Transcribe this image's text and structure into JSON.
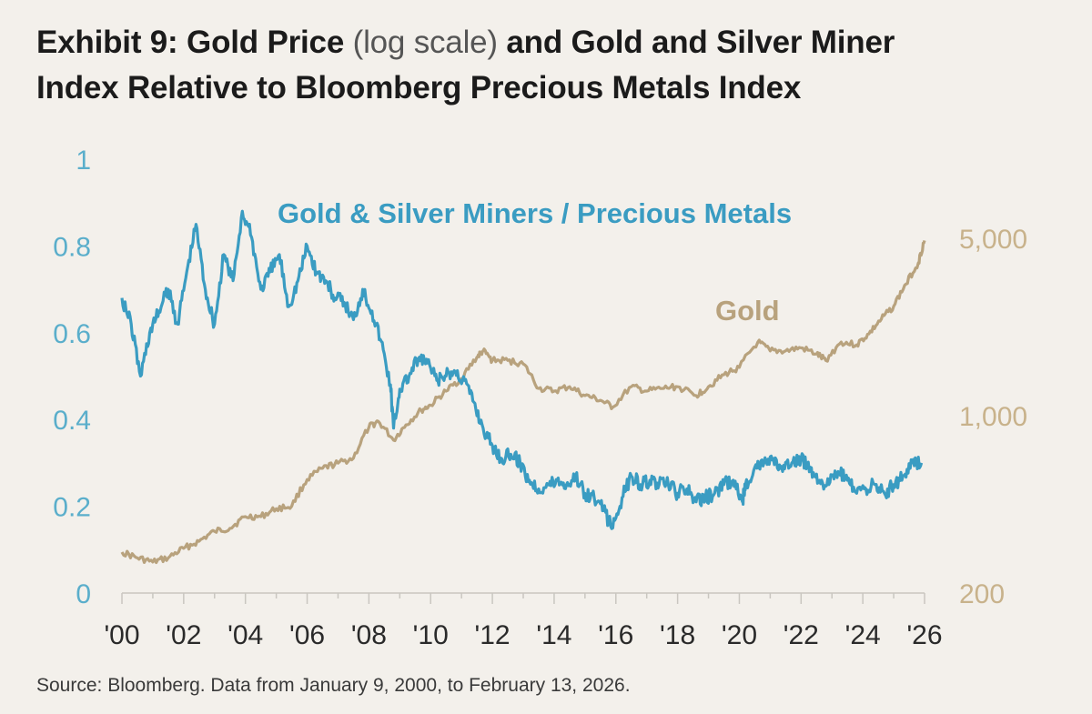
{
  "title": {
    "part1": "Exhibit 9: Gold Price ",
    "part2": "(log scale)",
    "part3": " and Gold and Silver Miner",
    "line2": "Index Relative to Bloomberg Precious Metals Index"
  },
  "source": "Source: Bloomberg. Data from January 9, 2000, to February 13, 2026.",
  "colors": {
    "miners": "#3a9cc2",
    "gold": "#b8a27d",
    "left_axis": "#5aaecb",
    "right_axis": "#c8b28b",
    "background": "#f3f0eb"
  },
  "chart_data": {
    "type": "line",
    "title": "Gold Price (log scale) and Gold and Silver Miner Index Relative to Bloomberg Precious Metals Index",
    "x_ticks": [
      "'00",
      "'02",
      "'04",
      "'06",
      "'08",
      "'10",
      "'12",
      "'14",
      "'16",
      "'18",
      "'20",
      "'22",
      "'24",
      "'26"
    ],
    "x_range": [
      2000,
      2026
    ],
    "left_axis": {
      "ticks": [
        "0",
        "0.2",
        "0.4",
        "0.6",
        "0.8",
        "1"
      ],
      "range": [
        0,
        1
      ],
      "scale": "linear"
    },
    "right_axis": {
      "ticks": [
        "200",
        "1,000",
        "5,000"
      ],
      "range": [
        200,
        5000
      ],
      "scale": "log"
    },
    "legend": "inline labels",
    "series": [
      {
        "name": "Gold & Silver Miners / Precious Metals",
        "axis": "left",
        "x": [
          2000.0,
          2000.3,
          2000.6,
          2000.9,
          2001.2,
          2001.5,
          2001.8,
          2002.1,
          2002.4,
          2002.7,
          2003.0,
          2003.3,
          2003.6,
          2003.9,
          2004.2,
          2004.5,
          2004.8,
          2005.1,
          2005.4,
          2005.7,
          2006.0,
          2006.3,
          2006.6,
          2006.9,
          2007.2,
          2007.5,
          2007.8,
          2008.1,
          2008.4,
          2008.7,
          2008.8,
          2009.0,
          2009.3,
          2009.6,
          2009.9,
          2010.2,
          2010.5,
          2010.8,
          2011.1,
          2011.4,
          2011.7,
          2012.0,
          2012.3,
          2012.6,
          2012.9,
          2013.2,
          2013.5,
          2013.8,
          2014.1,
          2014.4,
          2014.7,
          2015.0,
          2015.3,
          2015.6,
          2015.9,
          2016.2,
          2016.5,
          2016.8,
          2017.1,
          2017.4,
          2017.7,
          2018.0,
          2018.3,
          2018.6,
          2018.9,
          2019.2,
          2019.5,
          2019.8,
          2020.1,
          2020.2,
          2020.5,
          2020.8,
          2021.1,
          2021.4,
          2021.7,
          2022.0,
          2022.3,
          2022.6,
          2022.9,
          2023.2,
          2023.5,
          2023.8,
          2024.1,
          2024.4,
          2024.7,
          2025.0,
          2025.3,
          2025.6,
          2025.9
        ],
        "y": [
          0.68,
          0.62,
          0.5,
          0.6,
          0.65,
          0.7,
          0.62,
          0.74,
          0.85,
          0.7,
          0.62,
          0.78,
          0.72,
          0.88,
          0.82,
          0.7,
          0.74,
          0.78,
          0.66,
          0.72,
          0.8,
          0.74,
          0.72,
          0.68,
          0.67,
          0.63,
          0.7,
          0.65,
          0.58,
          0.48,
          0.38,
          0.47,
          0.5,
          0.54,
          0.53,
          0.49,
          0.5,
          0.51,
          0.49,
          0.44,
          0.38,
          0.34,
          0.31,
          0.32,
          0.3,
          0.26,
          0.24,
          0.25,
          0.26,
          0.25,
          0.27,
          0.23,
          0.22,
          0.19,
          0.15,
          0.22,
          0.27,
          0.25,
          0.26,
          0.25,
          0.25,
          0.23,
          0.24,
          0.21,
          0.22,
          0.23,
          0.25,
          0.26,
          0.21,
          0.25,
          0.29,
          0.3,
          0.31,
          0.28,
          0.3,
          0.31,
          0.29,
          0.26,
          0.25,
          0.28,
          0.26,
          0.23,
          0.24,
          0.25,
          0.23,
          0.25,
          0.27,
          0.3,
          0.3
        ]
      },
      {
        "name": "Gold",
        "axis": "right",
        "x": [
          2000.0,
          2000.5,
          2001.0,
          2001.5,
          2002.0,
          2002.5,
          2003.0,
          2003.5,
          2004.0,
          2004.5,
          2005.0,
          2005.5,
          2006.0,
          2006.5,
          2007.0,
          2007.5,
          2008.0,
          2008.3,
          2008.8,
          2009.2,
          2009.7,
          2010.0,
          2010.5,
          2011.0,
          2011.5,
          2011.7,
          2012.0,
          2012.5,
          2013.0,
          2013.5,
          2014.0,
          2014.5,
          2015.0,
          2015.5,
          2015.9,
          2016.5,
          2017.0,
          2017.5,
          2018.0,
          2018.6,
          2019.0,
          2019.5,
          2020.0,
          2020.6,
          2021.0,
          2021.5,
          2022.0,
          2022.5,
          2022.8,
          2023.3,
          2023.8,
          2024.2,
          2024.6,
          2025.0,
          2025.4,
          2025.8,
          2026.0
        ],
        "y": [
          290,
          275,
          265,
          275,
          300,
          320,
          350,
          360,
          400,
          400,
          430,
          440,
          560,
          620,
          650,
          680,
          900,
          950,
          800,
          920,
          1050,
          1100,
          1250,
          1400,
          1700,
          1800,
          1650,
          1650,
          1600,
          1280,
          1250,
          1300,
          1200,
          1150,
          1080,
          1300,
          1250,
          1280,
          1300,
          1200,
          1300,
          1450,
          1550,
          1950,
          1800,
          1800,
          1850,
          1750,
          1650,
          1950,
          1900,
          2100,
          2400,
          2700,
          3300,
          4000,
          4900
        ]
      }
    ]
  }
}
